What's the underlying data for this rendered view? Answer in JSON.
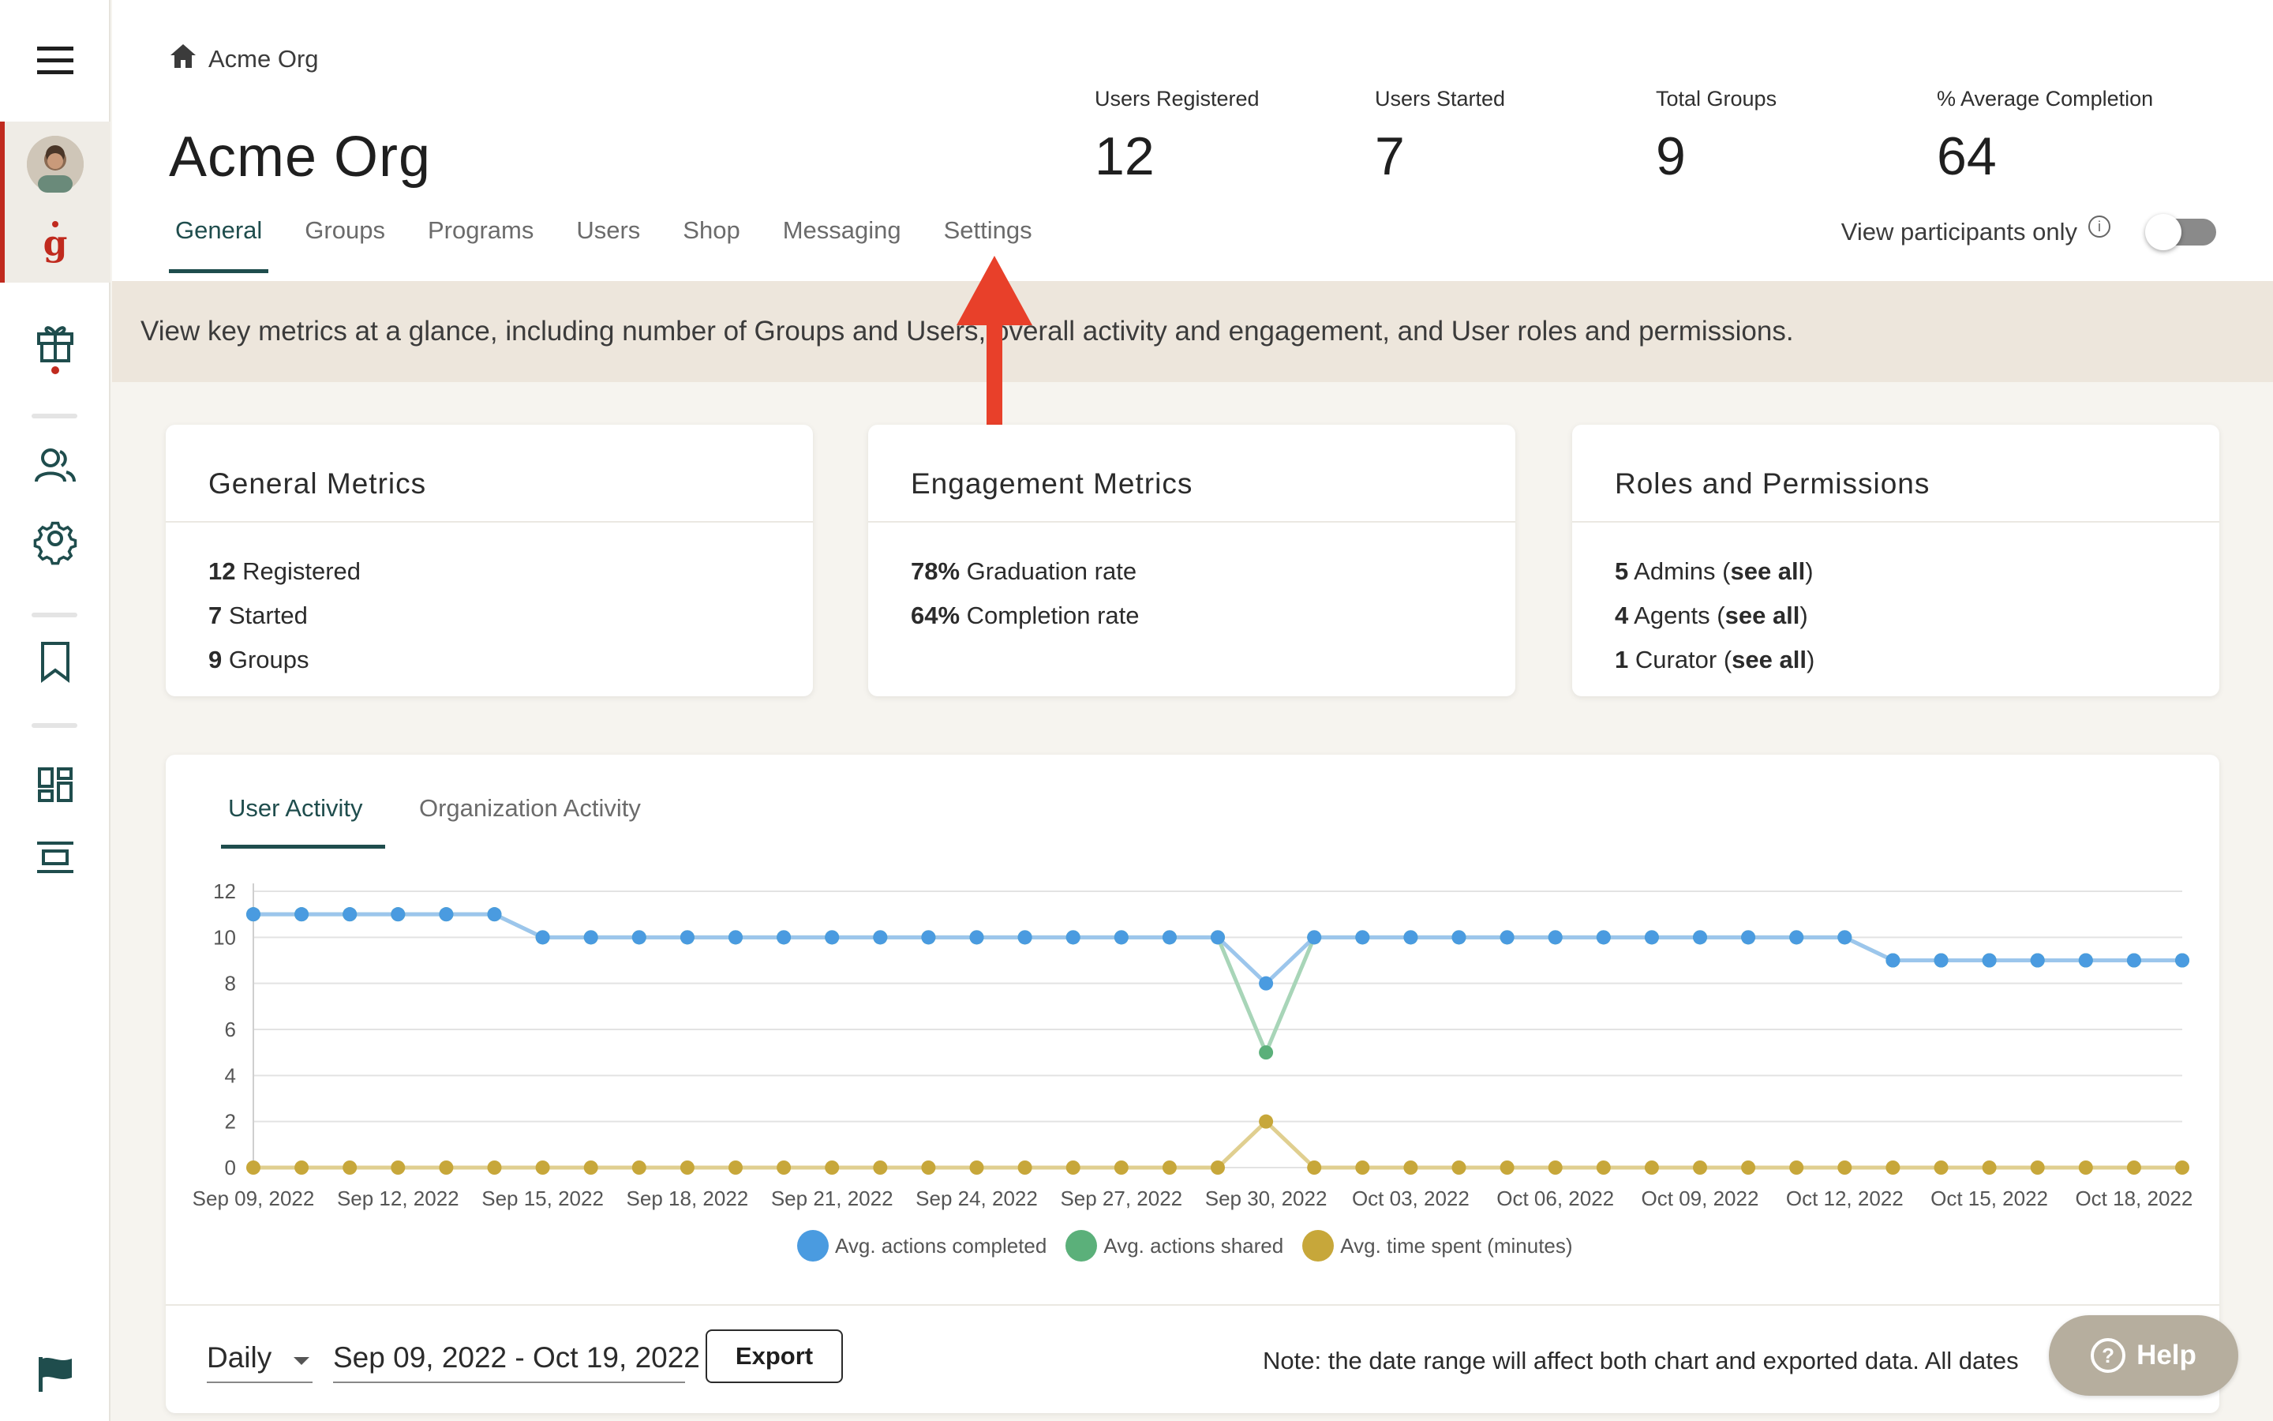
{
  "sidebar": {
    "icons": [
      "menu-icon",
      "avatar",
      "brand-logo-icon",
      "gift-icon",
      "users-icon",
      "gear-icon",
      "bookmark-icon",
      "dashboard-icon",
      "layout-icon",
      "flag-icon"
    ]
  },
  "header": {
    "breadcrumb": "Acme Org",
    "title": "Acme Org",
    "stats": [
      {
        "label": "Users Registered",
        "value": "12"
      },
      {
        "label": "Users Started",
        "value": "7"
      },
      {
        "label": "Total Groups",
        "value": "9"
      },
      {
        "label": "% Average Completion",
        "value": "64"
      }
    ],
    "tabs": [
      "General",
      "Groups",
      "Programs",
      "Users",
      "Shop",
      "Messaging",
      "Settings"
    ],
    "toggle_label": "View participants only",
    "toggle_on": false
  },
  "banner": {
    "text": "View key metrics at a glance, including number of Groups and Users, overall activity and engagement, and User roles and permissions."
  },
  "cards": {
    "general": {
      "title": "General Metrics",
      "rows": [
        {
          "num": "12",
          "text": " Registered"
        },
        {
          "num": "7",
          "text": " Started"
        },
        {
          "num": "9",
          "text": " Groups"
        }
      ]
    },
    "engagement": {
      "title": "Engagement Metrics",
      "rows": [
        {
          "num": "78%",
          "text": " Graduation rate"
        },
        {
          "num": "64%",
          "text": " Completion rate"
        }
      ]
    },
    "roles": {
      "title": "Roles and Permissions",
      "rows": [
        {
          "num": "5",
          "text": " Admins (",
          "link": "see all",
          "end": ")"
        },
        {
          "num": "4",
          "text": " Agents (",
          "link": "see all",
          "end": ")"
        },
        {
          "num": "1",
          "text": " Curator (",
          "link": "see all",
          "end": ")"
        }
      ]
    }
  },
  "activity": {
    "tabs": [
      "User Activity",
      "Organization Activity"
    ],
    "footer": {
      "interval": "Daily",
      "date_range": "Sep 09, 2022 - Oct 19, 2022",
      "export_label": "Export",
      "note": "Note: the date range will affect both chart and exported data. All dates"
    }
  },
  "help_label": "Help",
  "colors": {
    "accent": "#1f4d4d",
    "brand_red": "#c02a1e",
    "series_completed": "#4a9be0",
    "series_shared": "#5bb07a",
    "series_time": "#c7a73a"
  },
  "chart_data": {
    "type": "line",
    "ylim": [
      0,
      12
    ],
    "yticks": [
      0,
      2,
      4,
      6,
      8,
      10,
      12
    ],
    "x": [
      "Sep 09, 2022",
      "Sep 10, 2022",
      "Sep 11, 2022",
      "Sep 12, 2022",
      "Sep 13, 2022",
      "Sep 14, 2022",
      "Sep 15, 2022",
      "Sep 16, 2022",
      "Sep 17, 2022",
      "Sep 18, 2022",
      "Sep 19, 2022",
      "Sep 20, 2022",
      "Sep 21, 2022",
      "Sep 22, 2022",
      "Sep 23, 2022",
      "Sep 24, 2022",
      "Sep 25, 2022",
      "Sep 26, 2022",
      "Sep 27, 2022",
      "Sep 28, 2022",
      "Sep 29, 2022",
      "Sep 30, 2022",
      "Oct 01, 2022",
      "Oct 02, 2022",
      "Oct 03, 2022",
      "Oct 04, 2022",
      "Oct 05, 2022",
      "Oct 06, 2022",
      "Oct 07, 2022",
      "Oct 08, 2022",
      "Oct 09, 2022",
      "Oct 10, 2022",
      "Oct 11, 2022",
      "Oct 12, 2022",
      "Oct 13, 2022",
      "Oct 14, 2022",
      "Oct 15, 2022",
      "Oct 16, 2022",
      "Oct 17, 2022",
      "Oct 18, 2022",
      "Oct 19, 2022"
    ],
    "xtick_labels": [
      "Sep 09, 2022",
      "Sep 12, 2022",
      "Sep 15, 2022",
      "Sep 18, 2022",
      "Sep 21, 2022",
      "Sep 24, 2022",
      "Sep 27, 2022",
      "Sep 30, 2022",
      "Oct 03, 2022",
      "Oct 06, 2022",
      "Oct 09, 2022",
      "Oct 12, 2022",
      "Oct 15, 2022",
      "Oct 18, 2022"
    ],
    "series": [
      {
        "name": "Avg. actions shared",
        "color": "#5bb07a",
        "values": [
          11,
          11,
          11,
          11,
          11,
          11,
          10,
          10,
          10,
          10,
          10,
          10,
          10,
          10,
          10,
          10,
          10,
          10,
          10,
          10,
          10,
          5,
          10,
          10,
          10,
          10,
          10,
          10,
          10,
          10,
          10,
          10,
          10,
          10,
          9,
          9,
          9,
          9,
          9,
          9,
          9
        ]
      },
      {
        "name": "Avg. actions completed",
        "color": "#4a9be0",
        "values": [
          11,
          11,
          11,
          11,
          11,
          11,
          10,
          10,
          10,
          10,
          10,
          10,
          10,
          10,
          10,
          10,
          10,
          10,
          10,
          10,
          10,
          8,
          10,
          10,
          10,
          10,
          10,
          10,
          10,
          10,
          10,
          10,
          10,
          10,
          9,
          9,
          9,
          9,
          9,
          9,
          9
        ]
      },
      {
        "name": "Avg. time spent (minutes)",
        "color": "#c7a73a",
        "values": [
          0,
          0,
          0,
          0,
          0,
          0,
          0,
          0,
          0,
          0,
          0,
          0,
          0,
          0,
          0,
          0,
          0,
          0,
          0,
          0,
          0,
          2,
          0,
          0,
          0,
          0,
          0,
          0,
          0,
          0,
          0,
          0,
          0,
          0,
          0,
          0,
          0,
          0,
          0,
          0,
          0
        ]
      }
    ],
    "legend": [
      {
        "name": "Avg. actions completed",
        "color": "#4a9be0"
      },
      {
        "name": "Avg. actions shared",
        "color": "#5bb07a"
      },
      {
        "name": "Avg. time spent (minutes)",
        "color": "#c7a73a"
      }
    ],
    "legend_position": "bottom",
    "grid": true
  }
}
